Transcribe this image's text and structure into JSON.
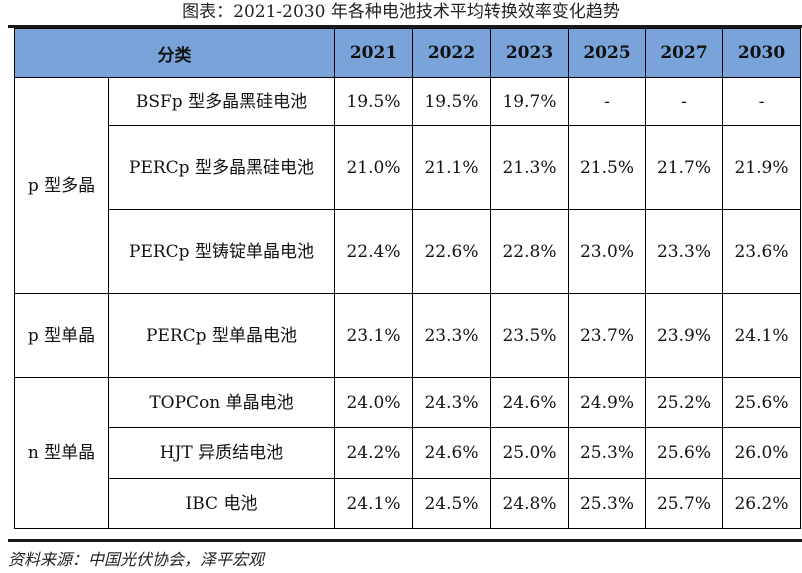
{
  "caption": "图表：2021-2030 年各种电池技术平均转换效率变化趋势",
  "header": {
    "category": "分类",
    "years": [
      "2021",
      "2022",
      "2023",
      "2025",
      "2027",
      "2030"
    ]
  },
  "groups": [
    {
      "label": "p 型多晶",
      "rows": [
        {
          "name": "BSFp 型多晶黑硅电池",
          "values": [
            "19.5%",
            "19.5%",
            "19.7%",
            "-",
            "-",
            "-"
          ]
        },
        {
          "name": "PERCp 型多晶黑硅电池",
          "values": [
            "21.0%",
            "21.1%",
            "21.3%",
            "21.5%",
            "21.7%",
            "21.9%"
          ]
        },
        {
          "name": "PERCp 型铸锭单晶电池",
          "values": [
            "22.4%",
            "22.6%",
            "22.8%",
            "23.0%",
            "23.3%",
            "23.6%"
          ]
        }
      ]
    },
    {
      "label": "p 型单晶",
      "rows": [
        {
          "name": "PERCp 型单晶电池",
          "values": [
            "23.1%",
            "23.3%",
            "23.5%",
            "23.7%",
            "23.9%",
            "24.1%"
          ]
        }
      ]
    },
    {
      "label": "n 型单晶",
      "rows": [
        {
          "name": "TOPCon 单晶电池",
          "values": [
            "24.0%",
            "24.3%",
            "24.6%",
            "24.9%",
            "25.2%",
            "25.6%"
          ]
        },
        {
          "name": "HJT 异质结电池",
          "values": [
            "24.2%",
            "24.6%",
            "25.0%",
            "25.3%",
            "25.6%",
            "26.0%"
          ]
        },
        {
          "name": "IBC 电池",
          "values": [
            "24.1%",
            "24.5%",
            "24.8%",
            "25.3%",
            "25.7%",
            "26.2%"
          ]
        }
      ]
    }
  ],
  "source": "资料来源：中国光伏协会，泽平宏观"
}
